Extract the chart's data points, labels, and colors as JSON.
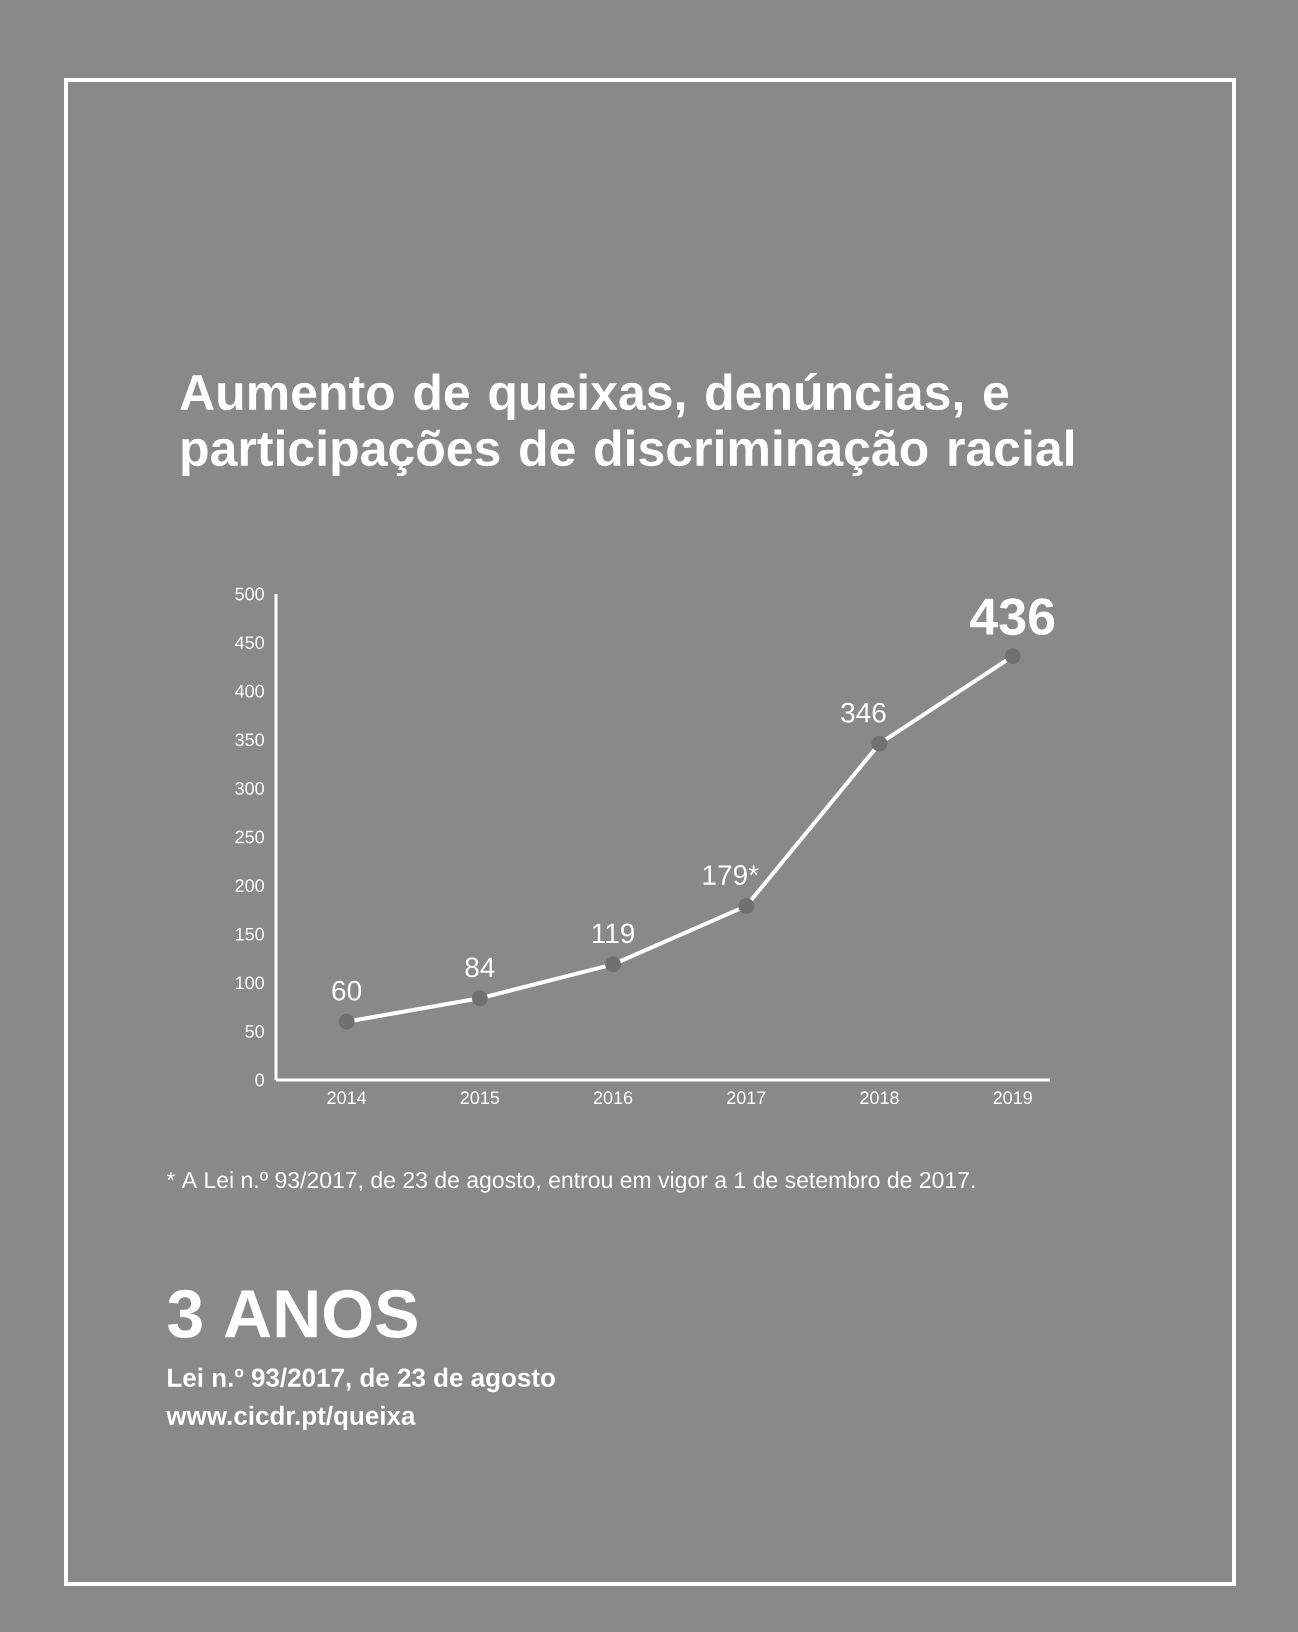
{
  "chart_data": {
    "type": "line",
    "title": "Aumento de queixas, denúncias, e participações de discriminação racial",
    "categories": [
      "2014",
      "2015",
      "2016",
      "2017",
      "2018",
      "2019"
    ],
    "values": [
      60,
      84,
      119,
      179,
      346,
      436
    ],
    "value_labels": [
      "60",
      "84",
      "119",
      "179*",
      "346",
      "436"
    ],
    "color": "#ffffff",
    "marker": "circle",
    "line_style": "solid",
    "ylim": [
      0,
      500
    ],
    "yticks": [
      0,
      50,
      100,
      150,
      200,
      250,
      300,
      350,
      400,
      450,
      500
    ],
    "grid": false,
    "annotations": [
      "* A Lei n.º 93/2017, de 23 de agosto, entrou em vigor a 1 de setembro de 2017.",
      "3 ANOS",
      "Lei n.º 93/2017, de 23 de agosto",
      "www.cicdr.pt/queixa"
    ]
  }
}
